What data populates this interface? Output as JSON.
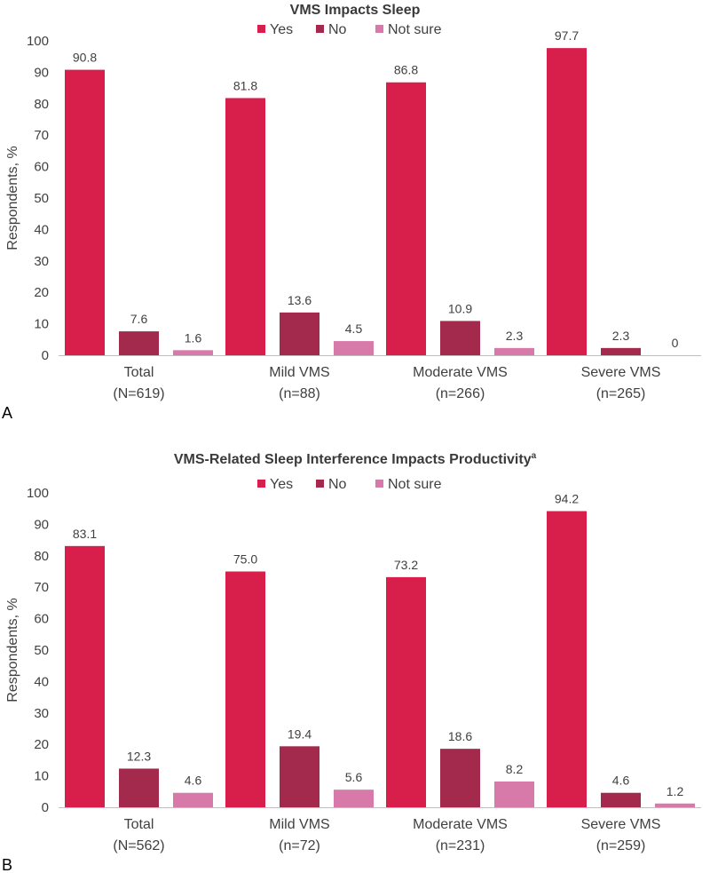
{
  "chart_data": [
    {
      "type": "bar",
      "panel": "A",
      "title": "VMS Impacts Sleep",
      "title_superscript": "",
      "ylabel": "Respondents, %",
      "xlabel": "",
      "ylim": [
        0,
        100
      ],
      "yticks": [
        0,
        10,
        20,
        30,
        40,
        50,
        60,
        70,
        80,
        90,
        100
      ],
      "legend_position": "top",
      "categories": [
        {
          "name": "Total",
          "n": "(N=619)"
        },
        {
          "name": "Mild VMS",
          "n": "(n=88)"
        },
        {
          "name": "Moderate VMS",
          "n": "(n=266)"
        },
        {
          "name": "Severe VMS",
          "n": "(n=265)"
        }
      ],
      "series": [
        {
          "name": "Yes",
          "color": "#d81f4c",
          "values": [
            90.8,
            81.8,
            86.8,
            97.7
          ],
          "labels": [
            "90.8",
            "81.8",
            "86.8",
            "97.7"
          ]
        },
        {
          "name": "No",
          "color": "#a3294d",
          "values": [
            7.6,
            13.6,
            10.9,
            2.3
          ],
          "labels": [
            "7.6",
            "13.6",
            "10.9",
            "2.3"
          ]
        },
        {
          "name": "Not sure",
          "color": "#d87aa9",
          "values": [
            1.6,
            4.5,
            2.3,
            0
          ],
          "labels": [
            "1.6",
            "4.5",
            "2.3",
            "0"
          ]
        }
      ]
    },
    {
      "type": "bar",
      "panel": "B",
      "title": "VMS-Related Sleep Interference Impacts Productivity",
      "title_superscript": "a",
      "ylabel": "Respondents, %",
      "xlabel": "",
      "ylim": [
        0,
        100
      ],
      "yticks": [
        0,
        10,
        20,
        30,
        40,
        50,
        60,
        70,
        80,
        90,
        100
      ],
      "legend_position": "top",
      "categories": [
        {
          "name": "Total",
          "n": "(N=562)"
        },
        {
          "name": "Mild VMS",
          "n": "(n=72)"
        },
        {
          "name": "Moderate VMS",
          "n": "(n=231)"
        },
        {
          "name": "Severe VMS",
          "n": "(n=259)"
        }
      ],
      "series": [
        {
          "name": "Yes",
          "color": "#d81f4c",
          "values": [
            83.1,
            75.0,
            73.2,
            94.2
          ],
          "labels": [
            "83.1",
            "75.0",
            "73.2",
            "94.2"
          ]
        },
        {
          "name": "No",
          "color": "#a3294d",
          "values": [
            12.3,
            19.4,
            18.6,
            4.6
          ],
          "labels": [
            "12.3",
            "19.4",
            "18.6",
            "4.6"
          ]
        },
        {
          "name": "Not sure",
          "color": "#d87aa9",
          "values": [
            4.6,
            5.6,
            8.2,
            1.2
          ],
          "labels": [
            "4.6",
            "5.6",
            "8.2",
            "1.2"
          ]
        }
      ]
    }
  ]
}
